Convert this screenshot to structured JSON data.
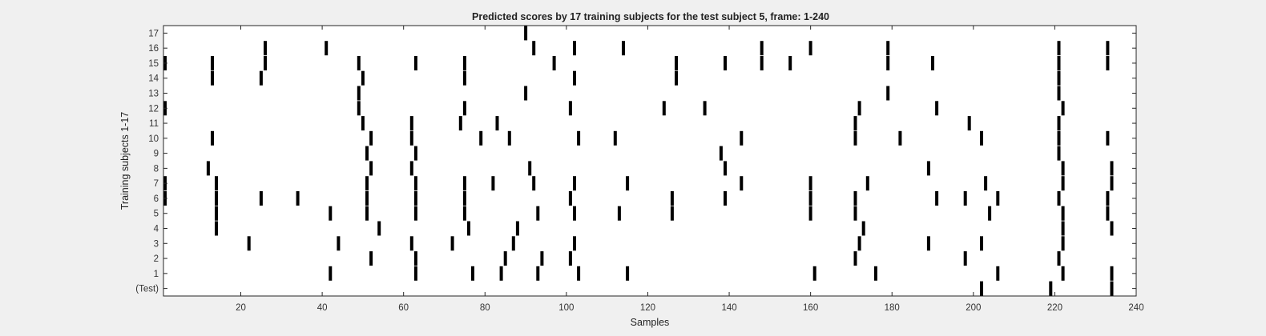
{
  "chart_data": {
    "type": "raster",
    "title": "Predicted scores by 17 training subjects for the test subject 5, frame: 1-240",
    "xlabel": "Samples",
    "ylabel": "Training subjects 1-17",
    "xlim": [
      1,
      240
    ],
    "x_ticks": [
      "20",
      "40",
      "60",
      "80",
      "100",
      "120",
      "140",
      "160",
      "180",
      "200",
      "220",
      "240"
    ],
    "y_tick_labels": [
      "(Test)",
      "1",
      "2",
      "3",
      "4",
      "5",
      "6",
      "7",
      "8",
      "9",
      "10",
      "11",
      "12",
      "13",
      "14",
      "15",
      "16",
      "17"
    ],
    "grid": false,
    "legend": "none",
    "mark_color": "#000000",
    "plot_background": "#ffffff",
    "rows": [
      {
        "label": "(Test)",
        "x": [
          202,
          219,
          234
        ]
      },
      {
        "label": "1",
        "x": [
          42,
          63,
          77,
          84,
          93,
          103,
          115,
          161,
          176,
          206,
          222,
          234
        ]
      },
      {
        "label": "2",
        "x": [
          52,
          63,
          85,
          94,
          101,
          171,
          198,
          221
        ]
      },
      {
        "label": "3",
        "x": [
          22,
          44,
          62,
          72,
          87,
          102,
          172,
          189,
          202,
          222
        ]
      },
      {
        "label": "4",
        "x": [
          14,
          54,
          76,
          88,
          173,
          222,
          234
        ]
      },
      {
        "label": "5",
        "x": [
          14,
          42,
          51,
          63,
          75,
          93,
          102,
          113,
          126,
          160,
          171,
          204,
          222,
          233
        ]
      },
      {
        "label": "6",
        "x": [
          1,
          14,
          25,
          34,
          51,
          63,
          75,
          101,
          126,
          139,
          160,
          171,
          191,
          198,
          206,
          221,
          233
        ]
      },
      {
        "label": "7",
        "x": [
          1,
          14,
          51,
          63,
          75,
          82,
          92,
          102,
          115,
          143,
          160,
          174,
          203,
          222,
          234
        ]
      },
      {
        "label": "8",
        "x": [
          12,
          52,
          62,
          91,
          139,
          189,
          222,
          234
        ]
      },
      {
        "label": "9",
        "x": [
          51,
          63,
          138,
          221
        ]
      },
      {
        "label": "10",
        "x": [
          13,
          52,
          62,
          79,
          86,
          103,
          112,
          143,
          171,
          182,
          202,
          221,
          233
        ]
      },
      {
        "label": "11",
        "x": [
          50,
          62,
          74,
          83,
          171,
          199,
          221
        ]
      },
      {
        "label": "12",
        "x": [
          1,
          49,
          75,
          101,
          124,
          134,
          172,
          191,
          222
        ]
      },
      {
        "label": "13",
        "x": [
          49,
          90,
          179,
          221
        ]
      },
      {
        "label": "14",
        "x": [
          13,
          25,
          50,
          75,
          102,
          127,
          221
        ]
      },
      {
        "label": "15",
        "x": [
          0,
          13,
          26,
          49,
          63,
          75,
          97,
          127,
          139,
          148,
          155,
          179,
          190,
          221,
          233
        ]
      },
      {
        "label": "16",
        "x": [
          26,
          41,
          92,
          102,
          114,
          148,
          160,
          179,
          221,
          233
        ]
      },
      {
        "label": "17",
        "x": [
          90
        ]
      }
    ]
  }
}
